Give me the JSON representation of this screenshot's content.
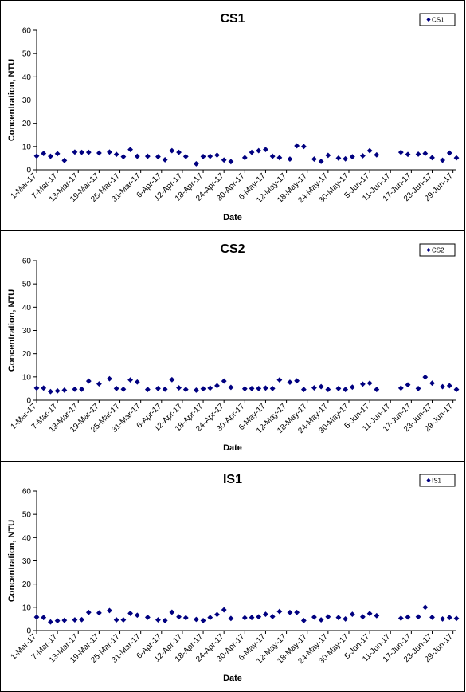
{
  "chart_data": [
    {
      "type": "scatter",
      "title": "CS1",
      "xlabel": "Date",
      "ylabel": "Concentration, NTU",
      "ylim": [
        0,
        60
      ],
      "yticks": [
        0,
        10,
        20,
        30,
        40,
        50,
        60
      ],
      "xticks": [
        "1-Mar-17",
        "7-Mar-17",
        "13-Mar-17",
        "19-Mar-17",
        "25-Mar-17",
        "31-Mar-17",
        "6-Apr-17",
        "12-Apr-17",
        "18-Apr-17",
        "24-Apr-17",
        "30-Apr-17",
        "6-May-17",
        "12-May-17",
        "18-May-17",
        "24-May-17",
        "30-May-17",
        "5-Jun-17",
        "11-Jun-17",
        "17-Jun-17",
        "23-Jun-17",
        "29-Jun-17"
      ],
      "legend": "top-right",
      "grid": false,
      "series": [
        {
          "name": "CS1",
          "color": "#000080",
          "points": [
            [
              "1-Mar-17",
              5.9
            ],
            [
              "3-Mar-17",
              7.0
            ],
            [
              "5-Mar-17",
              5.8
            ],
            [
              "7-Mar-17",
              6.9
            ],
            [
              "9-Mar-17",
              4.0
            ],
            [
              "12-Mar-17",
              7.6
            ],
            [
              "14-Mar-17",
              7.5
            ],
            [
              "16-Mar-17",
              7.5
            ],
            [
              "19-Mar-17",
              7.2
            ],
            [
              "22-Mar-17",
              7.6
            ],
            [
              "24-Mar-17",
              6.6
            ],
            [
              "26-Mar-17",
              5.6
            ],
            [
              "28-Mar-17",
              8.7
            ],
            [
              "30-Mar-17",
              5.8
            ],
            [
              "2-Apr-17",
              5.8
            ],
            [
              "5-Apr-17",
              5.6
            ],
            [
              "7-Apr-17",
              4.3
            ],
            [
              "9-Apr-17",
              8.2
            ],
            [
              "11-Apr-17",
              7.5
            ],
            [
              "13-Apr-17",
              5.7
            ],
            [
              "16-Apr-17",
              2.6
            ],
            [
              "18-Apr-17",
              5.7
            ],
            [
              "20-Apr-17",
              5.8
            ],
            [
              "22-Apr-17",
              6.3
            ],
            [
              "24-Apr-17",
              4.2
            ],
            [
              "26-Apr-17",
              3.5
            ],
            [
              "30-Apr-17",
              5.2
            ],
            [
              "2-May-17",
              7.5
            ],
            [
              "4-May-17",
              8.2
            ],
            [
              "6-May-17",
              8.7
            ],
            [
              "8-May-17",
              5.8
            ],
            [
              "10-May-17",
              5.2
            ],
            [
              "13-May-17",
              4.6
            ],
            [
              "15-May-17",
              10.3
            ],
            [
              "17-May-17",
              10.0
            ],
            [
              "20-May-17",
              4.6
            ],
            [
              "22-May-17",
              3.6
            ],
            [
              "24-May-17",
              6.2
            ],
            [
              "27-May-17",
              5.0
            ],
            [
              "29-May-17",
              4.7
            ],
            [
              "31-May-17",
              5.6
            ],
            [
              "3-Jun-17",
              6.0
            ],
            [
              "5-Jun-17",
              8.2
            ],
            [
              "7-Jun-17",
              6.4
            ],
            [
              "14-Jun-17",
              7.5
            ],
            [
              "16-Jun-17",
              6.6
            ],
            [
              "19-Jun-17",
              6.7
            ],
            [
              "21-Jun-17",
              7.0
            ],
            [
              "23-Jun-17",
              5.2
            ],
            [
              "26-Jun-17",
              4.1
            ],
            [
              "28-Jun-17",
              7.2
            ],
            [
              "30-Jun-17",
              5.1
            ]
          ]
        }
      ]
    },
    {
      "type": "scatter",
      "title": "CS2",
      "xlabel": "Date",
      "ylabel": "Concentration, NTU",
      "ylim": [
        0,
        60
      ],
      "yticks": [
        0,
        10,
        20,
        30,
        40,
        50,
        60
      ],
      "xticks": [
        "1-Mar-17",
        "7-Mar-17",
        "13-Mar-17",
        "19-Mar-17",
        "25-Mar-17",
        "31-Mar-17",
        "6-Apr-17",
        "12-Apr-17",
        "18-Apr-17",
        "24-Apr-17",
        "30-Apr-17",
        "6-May-17",
        "12-May-17",
        "18-May-17",
        "24-May-17",
        "30-May-17",
        "5-Jun-17",
        "11-Jun-17",
        "17-Jun-17",
        "23-Jun-17",
        "29-Jun-17"
      ],
      "legend": "top-right",
      "grid": false,
      "series": [
        {
          "name": "CS2",
          "color": "#000080",
          "points": [
            [
              "1-Mar-17",
              5.2
            ],
            [
              "3-Mar-17",
              5.2
            ],
            [
              "5-Mar-17",
              3.7
            ],
            [
              "7-Mar-17",
              4.0
            ],
            [
              "9-Mar-17",
              4.3
            ],
            [
              "12-Mar-17",
              4.7
            ],
            [
              "14-Mar-17",
              4.7
            ],
            [
              "16-Mar-17",
              8.2
            ],
            [
              "19-Mar-17",
              7.0
            ],
            [
              "22-Mar-17",
              9.2
            ],
            [
              "24-Mar-17",
              5.0
            ],
            [
              "26-Mar-17",
              4.7
            ],
            [
              "28-Mar-17",
              8.7
            ],
            [
              "30-Mar-17",
              7.8
            ],
            [
              "2-Apr-17",
              4.6
            ],
            [
              "5-Apr-17",
              5.0
            ],
            [
              "7-Apr-17",
              4.7
            ],
            [
              "9-Apr-17",
              8.8
            ],
            [
              "11-Apr-17",
              5.3
            ],
            [
              "13-Apr-17",
              4.6
            ],
            [
              "16-Apr-17",
              4.3
            ],
            [
              "18-Apr-17",
              4.9
            ],
            [
              "20-Apr-17",
              5.2
            ],
            [
              "22-Apr-17",
              6.2
            ],
            [
              "24-Apr-17",
              8.2
            ],
            [
              "26-Apr-17",
              5.5
            ],
            [
              "30-Apr-17",
              4.9
            ],
            [
              "2-May-17",
              5.0
            ],
            [
              "4-May-17",
              5.0
            ],
            [
              "6-May-17",
              5.2
            ],
            [
              "8-May-17",
              5.0
            ],
            [
              "10-May-17",
              8.7
            ],
            [
              "13-May-17",
              7.7
            ],
            [
              "15-May-17",
              8.3
            ],
            [
              "17-May-17",
              4.6
            ],
            [
              "20-May-17",
              5.3
            ],
            [
              "22-May-17",
              5.8
            ],
            [
              "24-May-17",
              4.6
            ],
            [
              "27-May-17",
              5.0
            ],
            [
              "29-May-17",
              4.6
            ],
            [
              "31-May-17",
              5.6
            ],
            [
              "3-Jun-17",
              6.9
            ],
            [
              "5-Jun-17",
              7.3
            ],
            [
              "7-Jun-17",
              4.6
            ],
            [
              "14-Jun-17",
              5.2
            ],
            [
              "16-Jun-17",
              6.6
            ],
            [
              "19-Jun-17",
              5.0
            ],
            [
              "21-Jun-17",
              9.9
            ],
            [
              "23-Jun-17",
              7.3
            ],
            [
              "26-Jun-17",
              5.8
            ],
            [
              "28-Jun-17",
              6.2
            ],
            [
              "30-Jun-17",
              4.6
            ]
          ]
        }
      ]
    },
    {
      "type": "scatter",
      "title": "IS1",
      "xlabel": "Date",
      "ylabel": "Concentration, NTU",
      "ylim": [
        0,
        60
      ],
      "yticks": [
        0,
        10,
        20,
        30,
        40,
        50,
        60
      ],
      "xticks": [
        "1-Mar-17",
        "7-Mar-17",
        "13-Mar-17",
        "19-Mar-17",
        "25-Mar-17",
        "31-Mar-17",
        "6-Apr-17",
        "12-Apr-17",
        "18-Apr-17",
        "24-Apr-17",
        "30-Apr-17",
        "6-May-17",
        "12-May-17",
        "18-May-17",
        "24-May-17",
        "30-May-17",
        "5-Jun-17",
        "11-Jun-17",
        "17-Jun-17",
        "23-Jun-17",
        "29-Jun-17"
      ],
      "legend": "top-right",
      "grid": false,
      "series": [
        {
          "name": "IS1",
          "color": "#000080",
          "points": [
            [
              "1-Mar-17",
              5.8
            ],
            [
              "3-Mar-17",
              5.6
            ],
            [
              "5-Mar-17",
              3.7
            ],
            [
              "7-Mar-17",
              4.2
            ],
            [
              "9-Mar-17",
              4.4
            ],
            [
              "12-Mar-17",
              4.6
            ],
            [
              "14-Mar-17",
              4.7
            ],
            [
              "16-Mar-17",
              7.8
            ],
            [
              "19-Mar-17",
              7.6
            ],
            [
              "22-Mar-17",
              8.6
            ],
            [
              "24-Mar-17",
              4.6
            ],
            [
              "26-Mar-17",
              4.6
            ],
            [
              "28-Mar-17",
              7.4
            ],
            [
              "30-Mar-17",
              6.6
            ],
            [
              "2-Apr-17",
              5.7
            ],
            [
              "5-Apr-17",
              4.6
            ],
            [
              "7-Apr-17",
              4.3
            ],
            [
              "9-Apr-17",
              7.9
            ],
            [
              "11-Apr-17",
              5.9
            ],
            [
              "13-Apr-17",
              5.5
            ],
            [
              "16-Apr-17",
              4.8
            ],
            [
              "18-Apr-17",
              4.3
            ],
            [
              "20-Apr-17",
              5.6
            ],
            [
              "22-Apr-17",
              6.9
            ],
            [
              "24-Apr-17",
              8.9
            ],
            [
              "26-Apr-17",
              5.2
            ],
            [
              "30-Apr-17",
              5.5
            ],
            [
              "2-May-17",
              5.6
            ],
            [
              "4-May-17",
              5.9
            ],
            [
              "6-May-17",
              7.0
            ],
            [
              "8-May-17",
              6.0
            ],
            [
              "10-May-17",
              8.2
            ],
            [
              "13-May-17",
              7.8
            ],
            [
              "15-May-17",
              7.8
            ],
            [
              "17-May-17",
              4.3
            ],
            [
              "20-May-17",
              5.8
            ],
            [
              "22-May-17",
              4.6
            ],
            [
              "24-May-17",
              5.9
            ],
            [
              "27-May-17",
              5.6
            ],
            [
              "29-May-17",
              5.0
            ],
            [
              "31-May-17",
              7.0
            ],
            [
              "3-Jun-17",
              5.9
            ],
            [
              "5-Jun-17",
              7.3
            ],
            [
              "7-Jun-17",
              6.4
            ],
            [
              "14-Jun-17",
              5.3
            ],
            [
              "16-Jun-17",
              5.8
            ],
            [
              "19-Jun-17",
              5.9
            ],
            [
              "21-Jun-17",
              10.0
            ],
            [
              "23-Jun-17",
              5.7
            ],
            [
              "26-Jun-17",
              5.0
            ],
            [
              "28-Jun-17",
              5.6
            ],
            [
              "30-Jun-17",
              5.2
            ]
          ]
        }
      ]
    }
  ]
}
